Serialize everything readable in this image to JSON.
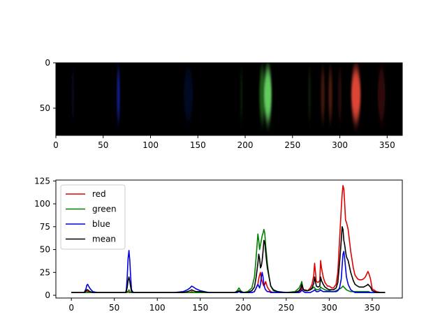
{
  "chart_data": [
    {
      "type": "heatmap",
      "title": "",
      "xlabel": "",
      "ylabel": "",
      "xlim": [
        0,
        366
      ],
      "ylim": [
        80,
        0
      ],
      "xticks": [
        0,
        50,
        100,
        150,
        200,
        250,
        300,
        350
      ],
      "yticks": [
        0,
        50
      ],
      "bands": [
        {
          "x": 18,
          "width": 3,
          "color": "#10144a",
          "intensity": 0.35
        },
        {
          "x": 66,
          "width": 3,
          "color": "#1a25c8",
          "intensity": 0.75
        },
        {
          "x": 140,
          "width": 10,
          "color": "#0b1460",
          "intensity": 0.35
        },
        {
          "x": 196,
          "width": 2,
          "color": "#1c5a14",
          "intensity": 0.4
        },
        {
          "x": 218,
          "width": 6,
          "color": "#2f8f22",
          "intensity": 0.65
        },
        {
          "x": 224,
          "width": 8,
          "color": "#6ee06a",
          "intensity": 0.9
        },
        {
          "x": 268,
          "width": 2,
          "color": "#2d4d12",
          "intensity": 0.45
        },
        {
          "x": 282,
          "width": 4,
          "color": "#7a2a1a",
          "intensity": 0.55
        },
        {
          "x": 290,
          "width": 4,
          "color": "#8a3220",
          "intensity": 0.55
        },
        {
          "x": 300,
          "width": 4,
          "color": "#5a1a12",
          "intensity": 0.4
        },
        {
          "x": 317,
          "width": 10,
          "color": "#e84a3a",
          "intensity": 0.95
        },
        {
          "x": 344,
          "width": 8,
          "color": "#6a1212",
          "intensity": 0.45
        }
      ]
    },
    {
      "type": "line",
      "title": "",
      "xlabel": "",
      "ylabel": "",
      "xlim": [
        -18,
        385
      ],
      "ylim": [
        -3,
        126
      ],
      "xticks": [
        0,
        50,
        100,
        150,
        200,
        250,
        300,
        350
      ],
      "yticks": [
        0,
        25,
        50,
        75,
        100,
        125
      ],
      "legend": "upper-left",
      "x": [
        0,
        10,
        15,
        17,
        18,
        19,
        20,
        22,
        25,
        30,
        50,
        60,
        63,
        64,
        65,
        66,
        67,
        68,
        69,
        70,
        72,
        80,
        100,
        120,
        130,
        135,
        138,
        140,
        142,
        145,
        150,
        160,
        180,
        190,
        193,
        195,
        197,
        200,
        205,
        210,
        213,
        215,
        217,
        218,
        219,
        220,
        221,
        222,
        223,
        224,
        225,
        226,
        227,
        228,
        230,
        232,
        235,
        240,
        250,
        260,
        265,
        267,
        268,
        269,
        270,
        272,
        275,
        278,
        280,
        282,
        283,
        284,
        285,
        287,
        289,
        290,
        291,
        293,
        295,
        298,
        300,
        303,
        305,
        308,
        310,
        312,
        314,
        315,
        316,
        317,
        318,
        319,
        320,
        322,
        325,
        328,
        330,
        333,
        335,
        338,
        340,
        342,
        344,
        345,
        346,
        348,
        350,
        355,
        360,
        365
      ],
      "series": [
        {
          "name": "red",
          "color": "#e00000",
          "values": [
            3,
            3,
            3,
            4,
            5,
            4,
            4,
            3,
            3,
            3,
            3,
            3,
            3,
            3,
            4,
            4,
            3,
            3,
            3,
            3,
            3,
            3,
            3,
            3,
            3,
            3,
            3,
            4,
            3,
            3,
            3,
            3,
            3,
            3,
            3,
            4,
            3,
            3,
            3,
            3,
            4,
            8,
            12,
            18,
            22,
            25,
            18,
            15,
            12,
            10,
            12,
            15,
            12,
            9,
            6,
            4,
            3,
            3,
            3,
            3,
            4,
            6,
            9,
            7,
            6,
            6,
            5,
            8,
            12,
            22,
            35,
            25,
            15,
            14,
            16,
            38,
            30,
            20,
            14,
            10,
            10,
            8,
            8,
            12,
            25,
            60,
            95,
            110,
            120,
            116,
            100,
            82,
            80,
            72,
            48,
            30,
            22,
            18,
            17,
            17,
            18,
            20,
            24,
            26,
            24,
            18,
            7,
            4,
            3,
            3
          ]
        },
        {
          "name": "green",
          "color": "#007f00",
          "values": [
            3,
            3,
            3,
            3,
            3,
            3,
            3,
            3,
            3,
            3,
            3,
            3,
            3,
            3,
            3,
            4,
            6,
            4,
            3,
            3,
            3,
            3,
            3,
            3,
            3,
            3,
            3,
            3,
            3,
            3,
            3,
            3,
            3,
            3,
            5,
            8,
            5,
            3,
            4,
            8,
            20,
            42,
            67,
            60,
            50,
            55,
            60,
            65,
            68,
            72,
            68,
            55,
            45,
            35,
            20,
            10,
            5,
            3,
            3,
            4,
            8,
            12,
            15,
            10,
            6,
            5,
            5,
            6,
            7,
            9,
            8,
            7,
            6,
            6,
            7,
            9,
            8,
            7,
            6,
            5,
            5,
            4,
            4,
            5,
            6,
            7,
            8,
            9,
            10,
            9,
            8,
            7,
            6,
            5,
            4,
            4,
            4,
            4,
            4,
            4,
            4,
            4,
            4,
            4,
            4,
            3,
            3,
            3,
            3,
            3
          ]
        },
        {
          "name": "blue",
          "color": "#0000e0",
          "values": [
            3,
            3,
            3,
            7,
            11,
            12,
            10,
            7,
            4,
            3,
            3,
            3,
            3,
            6,
            20,
            40,
            49,
            38,
            20,
            6,
            3,
            3,
            3,
            3,
            4,
            6,
            8,
            10,
            9,
            7,
            5,
            3,
            3,
            3,
            3,
            4,
            3,
            3,
            3,
            3,
            4,
            8,
            12,
            10,
            8,
            12,
            20,
            25,
            20,
            12,
            8,
            6,
            5,
            4,
            4,
            3,
            3,
            3,
            3,
            3,
            3,
            4,
            6,
            5,
            4,
            3,
            3,
            3,
            4,
            5,
            6,
            5,
            4,
            4,
            5,
            6,
            5,
            4,
            4,
            4,
            4,
            4,
            4,
            4,
            5,
            8,
            18,
            32,
            45,
            48,
            40,
            30,
            20,
            12,
            6,
            4,
            3,
            3,
            3,
            3,
            3,
            3,
            3,
            3,
            3,
            3,
            3,
            3,
            3,
            3
          ]
        },
        {
          "name": "mean",
          "color": "#000000",
          "values": [
            3,
            3,
            3,
            5,
            6,
            6,
            5,
            4,
            3,
            3,
            3,
            3,
            3,
            4,
            9,
            16,
            20,
            15,
            9,
            4,
            3,
            3,
            3,
            3,
            3,
            4,
            5,
            6,
            5,
            4,
            4,
            3,
            3,
            3,
            4,
            5,
            4,
            3,
            3,
            5,
            9,
            20,
            35,
            45,
            40,
            30,
            32,
            38,
            48,
            60,
            58,
            48,
            38,
            30,
            20,
            10,
            6,
            4,
            3,
            3,
            5,
            8,
            12,
            9,
            6,
            5,
            5,
            6,
            8,
            13,
            20,
            15,
            10,
            9,
            10,
            20,
            16,
            12,
            9,
            7,
            6,
            6,
            6,
            8,
            14,
            35,
            60,
            75,
            72,
            60,
            55,
            48,
            42,
            38,
            25,
            16,
            12,
            10,
            9,
            9,
            9,
            10,
            11,
            12,
            11,
            9,
            5,
            3,
            3,
            3
          ]
        }
      ]
    }
  ]
}
